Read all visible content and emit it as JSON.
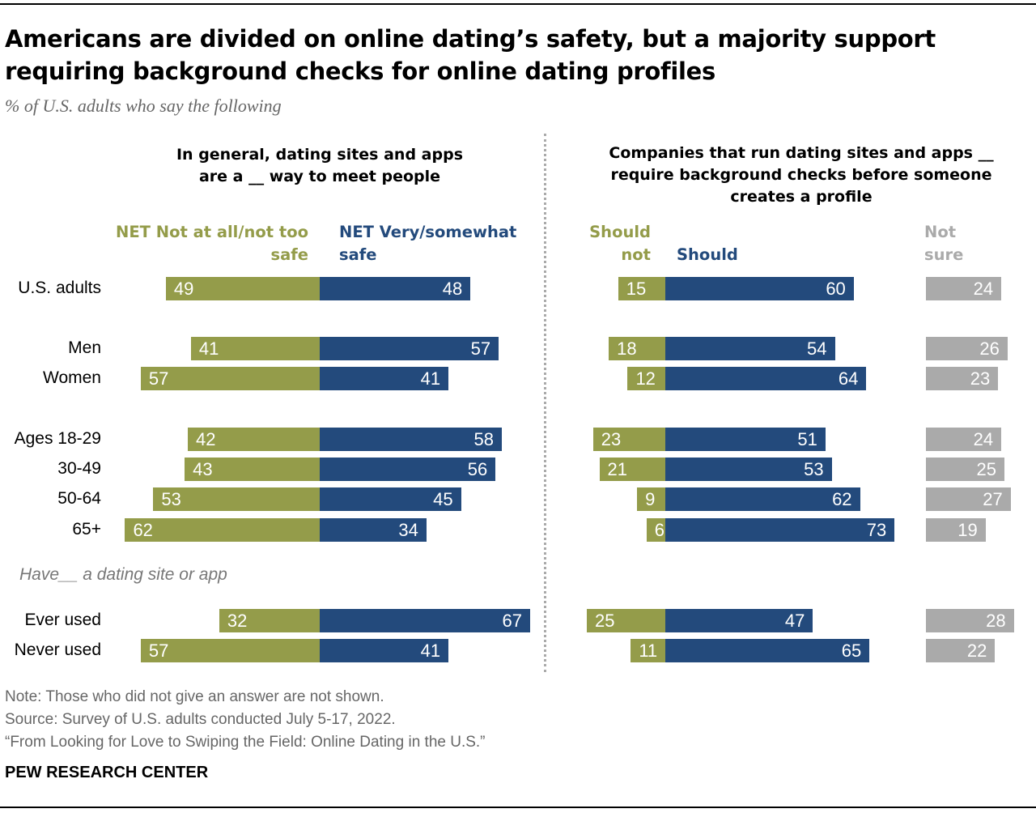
{
  "title": "Americans are divided on online dating’s safety, but a majority support requiring background checks for online dating profiles",
  "subtitle": "% of U.S. adults who say the following",
  "group_label": "Have__ a dating site or app",
  "note": "Note: Those who did not give an answer are not shown.",
  "source": "Source: Survey of U.S. adults conducted July 5-17, 2022.",
  "report": "“From Looking for Love to Swiping the Field: Online Dating in the U.S.”",
  "org": "PEW RESEARCH CENTER",
  "chart_data": [
    {
      "type": "bar",
      "title": "In general, dating sites and apps are a __ way to meet people",
      "categories": [
        "U.S. adults",
        "Men",
        "Women",
        "Ages 18-29",
        "30-49",
        "50-64",
        "65+",
        "Ever used",
        "Never used"
      ],
      "series": [
        {
          "name": "NET Not at all/not too safe",
          "color": "#949c4a",
          "values": [
            49,
            41,
            57,
            42,
            43,
            53,
            62,
            32,
            57
          ]
        },
        {
          "name": "NET Very/somewhat safe",
          "color": "#234a7c",
          "values": [
            48,
            57,
            41,
            58,
            56,
            45,
            34,
            67,
            41
          ]
        }
      ]
    },
    {
      "type": "bar",
      "title": "Companies that run dating sites and apps __ require background checks before someone creates a profile",
      "categories": [
        "U.S. adults",
        "Men",
        "Women",
        "Ages 18-29",
        "30-49",
        "50-64",
        "65+",
        "Ever used",
        "Never used"
      ],
      "series": [
        {
          "name": "Should not",
          "color": "#949c4a",
          "values": [
            15,
            18,
            12,
            23,
            21,
            9,
            6,
            25,
            11
          ]
        },
        {
          "name": "Should",
          "color": "#234a7c",
          "values": [
            60,
            54,
            64,
            51,
            53,
            62,
            73,
            47,
            65
          ]
        },
        {
          "name": "Not sure",
          "color": "#aaaaaa",
          "values": [
            24,
            26,
            23,
            24,
            25,
            27,
            19,
            28,
            22
          ]
        }
      ]
    }
  ]
}
